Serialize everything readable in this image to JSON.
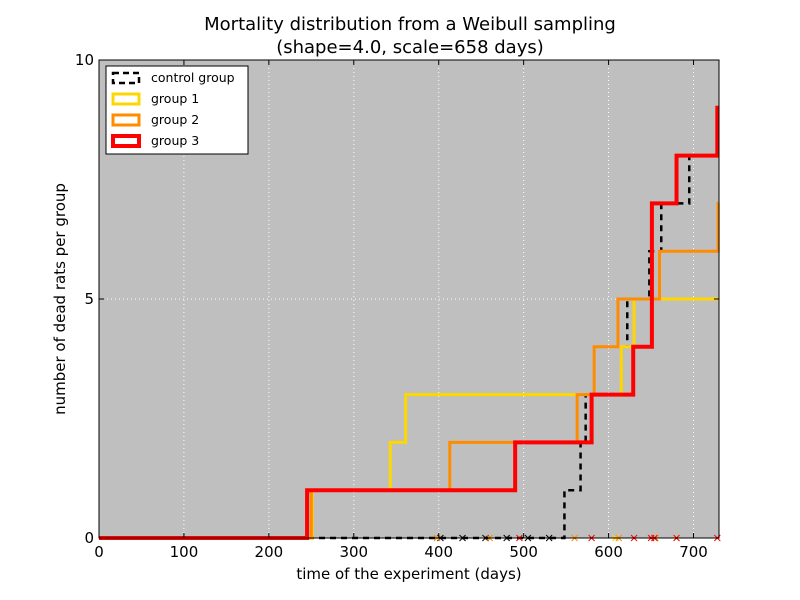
{
  "chart_data": {
    "type": "line",
    "title_line1": "Mortality distribution from a Weibull sampling",
    "title_line2": "(shape=4.0, scale=658 days)",
    "xlabel": "time of the experiment (days)",
    "ylabel": "number of dead rats per group",
    "xlim": [
      0,
      730
    ],
    "ylim": [
      0,
      10
    ],
    "xticks": [
      0,
      100,
      200,
      300,
      400,
      500,
      600,
      700
    ],
    "yticks": [
      0,
      5,
      10
    ],
    "grid": true,
    "legend_position": "top-left",
    "background_color": "#bfbfbf",
    "series": [
      {
        "name": "control group",
        "color": "#000000",
        "dashed": true,
        "width": 2.5,
        "steps": [
          [
            0,
            0
          ],
          [
            548,
            1
          ],
          [
            567,
            2
          ],
          [
            573,
            3
          ],
          [
            615,
            4
          ],
          [
            622,
            5
          ],
          [
            648,
            6
          ],
          [
            662,
            7
          ],
          [
            695,
            8
          ],
          [
            730,
            8
          ]
        ]
      },
      {
        "name": "group 1",
        "color": "#ffd700",
        "dashed": false,
        "width": 3,
        "steps": [
          [
            0,
            0
          ],
          [
            251,
            1
          ],
          [
            343,
            2
          ],
          [
            361,
            3
          ],
          [
            615,
            4
          ],
          [
            630,
            5
          ],
          [
            730,
            5
          ]
        ]
      },
      {
        "name": "group 2",
        "color": "#ff8c00",
        "dashed": false,
        "width": 3,
        "steps": [
          [
            0,
            0
          ],
          [
            250,
            1
          ],
          [
            392,
            1
          ],
          [
            413,
            2
          ],
          [
            563,
            3
          ],
          [
            583,
            4
          ],
          [
            611,
            5
          ],
          [
            620,
            5
          ],
          [
            660,
            6
          ],
          [
            729,
            7
          ],
          [
            730,
            7
          ]
        ]
      },
      {
        "name": "group 3",
        "color": "#ff0000",
        "dashed": false,
        "width": 4,
        "steps": [
          [
            0,
            0
          ],
          [
            245,
            1
          ],
          [
            490,
            2
          ],
          [
            580,
            3
          ],
          [
            629,
            4
          ],
          [
            651,
            7
          ],
          [
            680,
            8
          ],
          [
            728,
            9
          ],
          [
            730,
            9
          ]
        ]
      }
    ],
    "censored_markers": [
      {
        "color": "#000000",
        "x": [
          402,
          428,
          455,
          480,
          505,
          530
        ]
      },
      {
        "color": "#ffd700",
        "x": [
          608,
          655,
          680
        ]
      },
      {
        "color": "#ff8c00",
        "x": [
          398,
          460,
          560,
          612,
          655
        ]
      },
      {
        "color": "#ff0000",
        "x": [
          495,
          580,
          630,
          650,
          654,
          680,
          728
        ]
      }
    ]
  }
}
